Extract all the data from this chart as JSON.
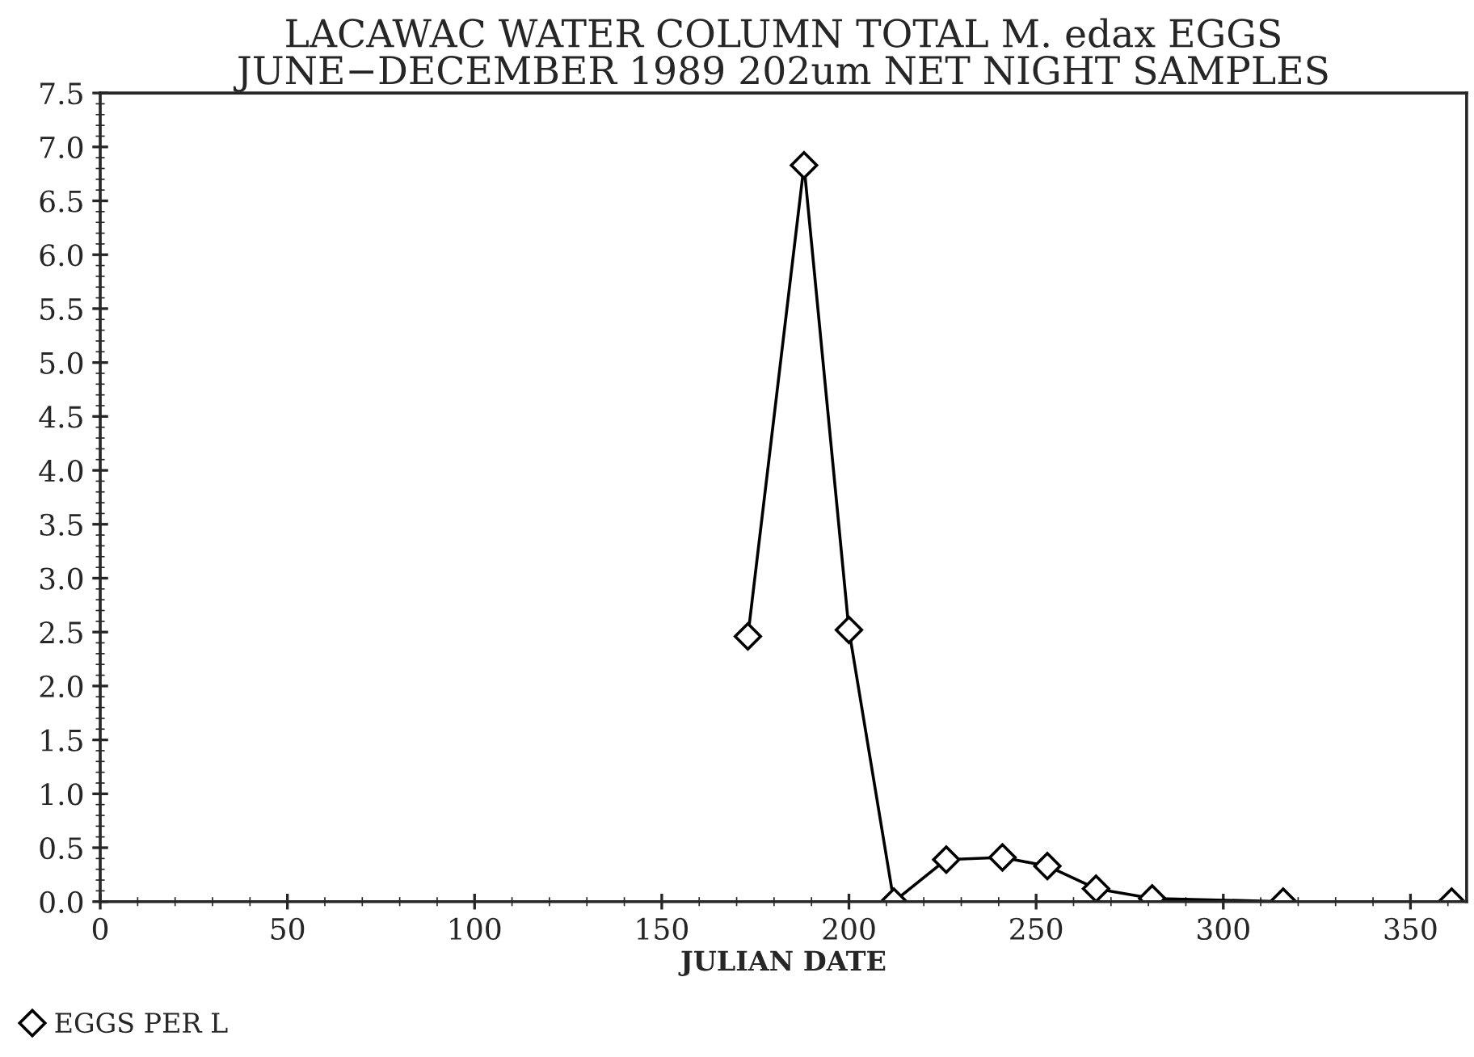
{
  "chart_data": {
    "type": "line",
    "title": "LACAWAC WATER COLUMN TOTAL M. edax EGGS\nJUNE−DECEMBER 1989 202um NET NIGHT SAMPLES",
    "xlabel": "JULIAN DATE",
    "x": [
      173,
      188,
      200,
      212,
      226,
      241,
      253,
      266,
      281,
      316,
      361
    ],
    "series": [
      {
        "name": "EGGS PER L",
        "color": "#000000",
        "values": [
          2.46,
          6.83,
          2.52,
          0,
          0.39,
          0.41,
          0.33,
          0.12,
          0.03,
          0,
          0
        ]
      }
    ],
    "xlim": [
      0,
      365
    ],
    "xticks": [
      0,
      50,
      100,
      150,
      200,
      250,
      300,
      350
    ],
    "ylim": [
      0,
      7.5
    ],
    "yticks": [
      {
        "value": 0,
        "label": "0.0"
      },
      0.5,
      {
        "value": 1,
        "label": "1.0"
      },
      1.5,
      {
        "value": 2,
        "label": "2.0"
      },
      2.5,
      {
        "value": 3,
        "label": "3.0"
      },
      3.5,
      {
        "value": 4,
        "label": "4.0"
      },
      4.5,
      {
        "value": 5,
        "label": "5.0"
      },
      5.5,
      {
        "value": 6,
        "label": "6.0"
      },
      6.5,
      {
        "value": 7,
        "label": "7.0"
      },
      7.5
    ],
    "marker": "diamond",
    "line_style": "solid",
    "grid": false,
    "legend": "bottom left"
  }
}
